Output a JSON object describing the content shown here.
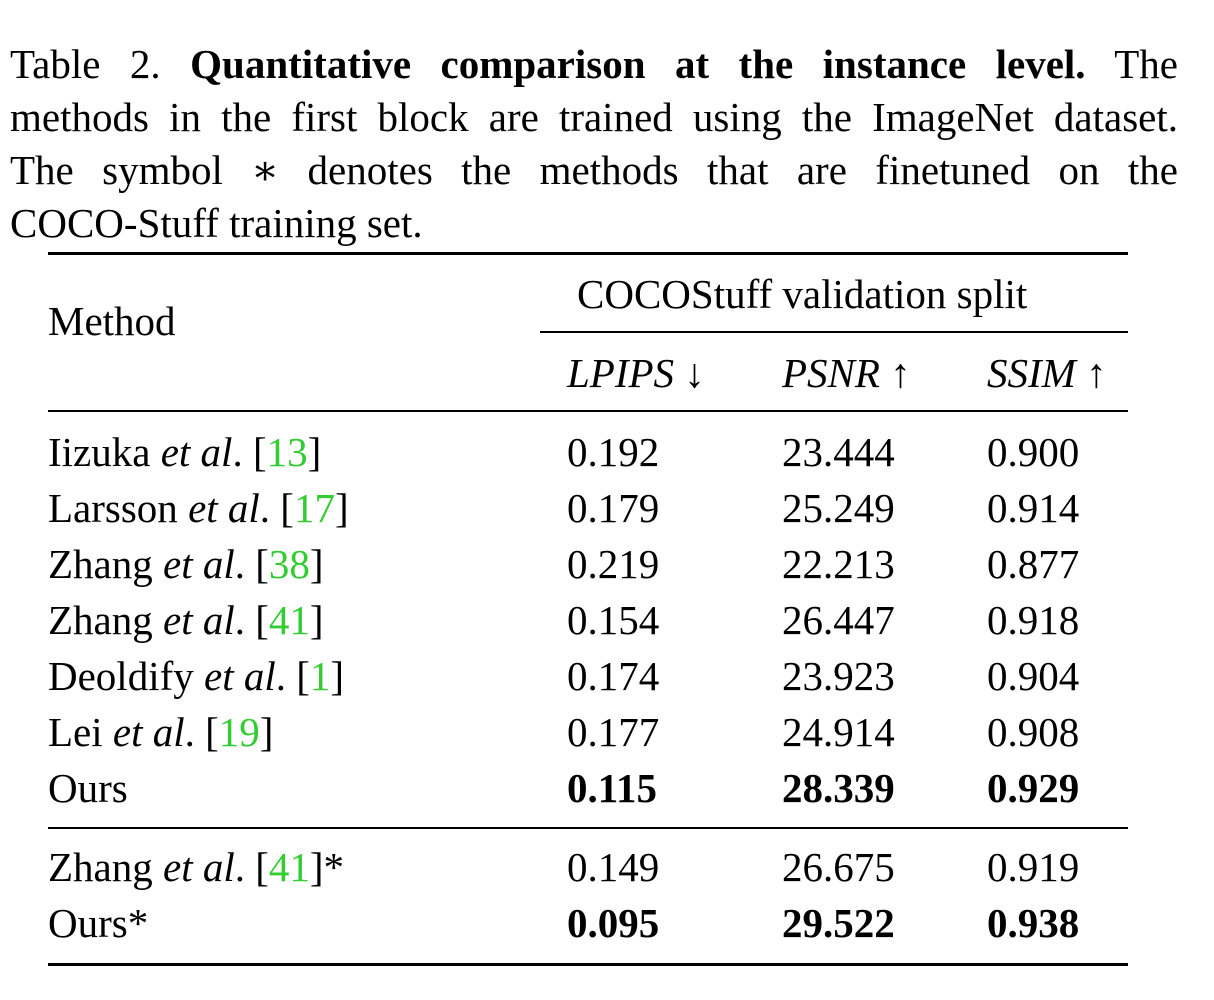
{
  "caption": {
    "label": "Table 2.",
    "bold_title": "Quantitative comparison at the instance level.",
    "line1_rest": "The",
    "line2": "methods in the first block are trained using the ImageNet dataset.",
    "line3": "The symbol ∗ denotes the methods that are finetuned on the",
    "line4": "COCO-Stuff training set."
  },
  "table": {
    "method_header": "Method",
    "group_header": "COCOStuff validation split",
    "metric_headers": [
      {
        "name": "LPIPS",
        "arrow": "↓"
      },
      {
        "name": "PSNR",
        "arrow": "↑"
      },
      {
        "name": "SSIM",
        "arrow": "↑"
      }
    ],
    "block1": [
      {
        "name": "Iizuka",
        "etal": "et al",
        "suffix": ". [",
        "cite": "13",
        "close": "]",
        "lpips": "0.192",
        "psnr": "23.444",
        "ssim": "0.900"
      },
      {
        "name": "Larsson",
        "etal": "et al",
        "suffix": ". [",
        "cite": "17",
        "close": "]",
        "lpips": "0.179",
        "psnr": "25.249",
        "ssim": "0.914"
      },
      {
        "name": "Zhang",
        "etal": "et al",
        "suffix": ". [",
        "cite": "38",
        "close": "]",
        "lpips": "0.219",
        "psnr": "22.213",
        "ssim": "0.877"
      },
      {
        "name": "Zhang",
        "etal": "et al",
        "suffix": ". [",
        "cite": "41",
        "close": "]",
        "lpips": "0.154",
        "psnr": "26.447",
        "ssim": "0.918"
      },
      {
        "name": "Deoldify",
        "etal": "et al",
        "suffix": ". [",
        "cite": "1",
        "close": "]",
        "lpips": "0.174",
        "psnr": "23.923",
        "ssim": "0.904"
      },
      {
        "name": "Lei",
        "etal": "et al",
        "suffix": ". [",
        "cite": "19",
        "close": "]",
        "lpips": "0.177",
        "psnr": "24.914",
        "ssim": "0.908"
      }
    ],
    "ours": {
      "name": "Ours",
      "lpips": "0.115",
      "psnr": "28.339",
      "ssim": "0.929"
    },
    "block2": [
      {
        "name": "Zhang",
        "etal": "et al",
        "suffix": ". [",
        "cite": "41",
        "close": "]*",
        "lpips": "0.149",
        "psnr": "26.675",
        "ssim": "0.919"
      }
    ],
    "ours_ft": {
      "name": "Ours*",
      "lpips": "0.095",
      "psnr": "29.522",
      "ssim": "0.938"
    }
  }
}
